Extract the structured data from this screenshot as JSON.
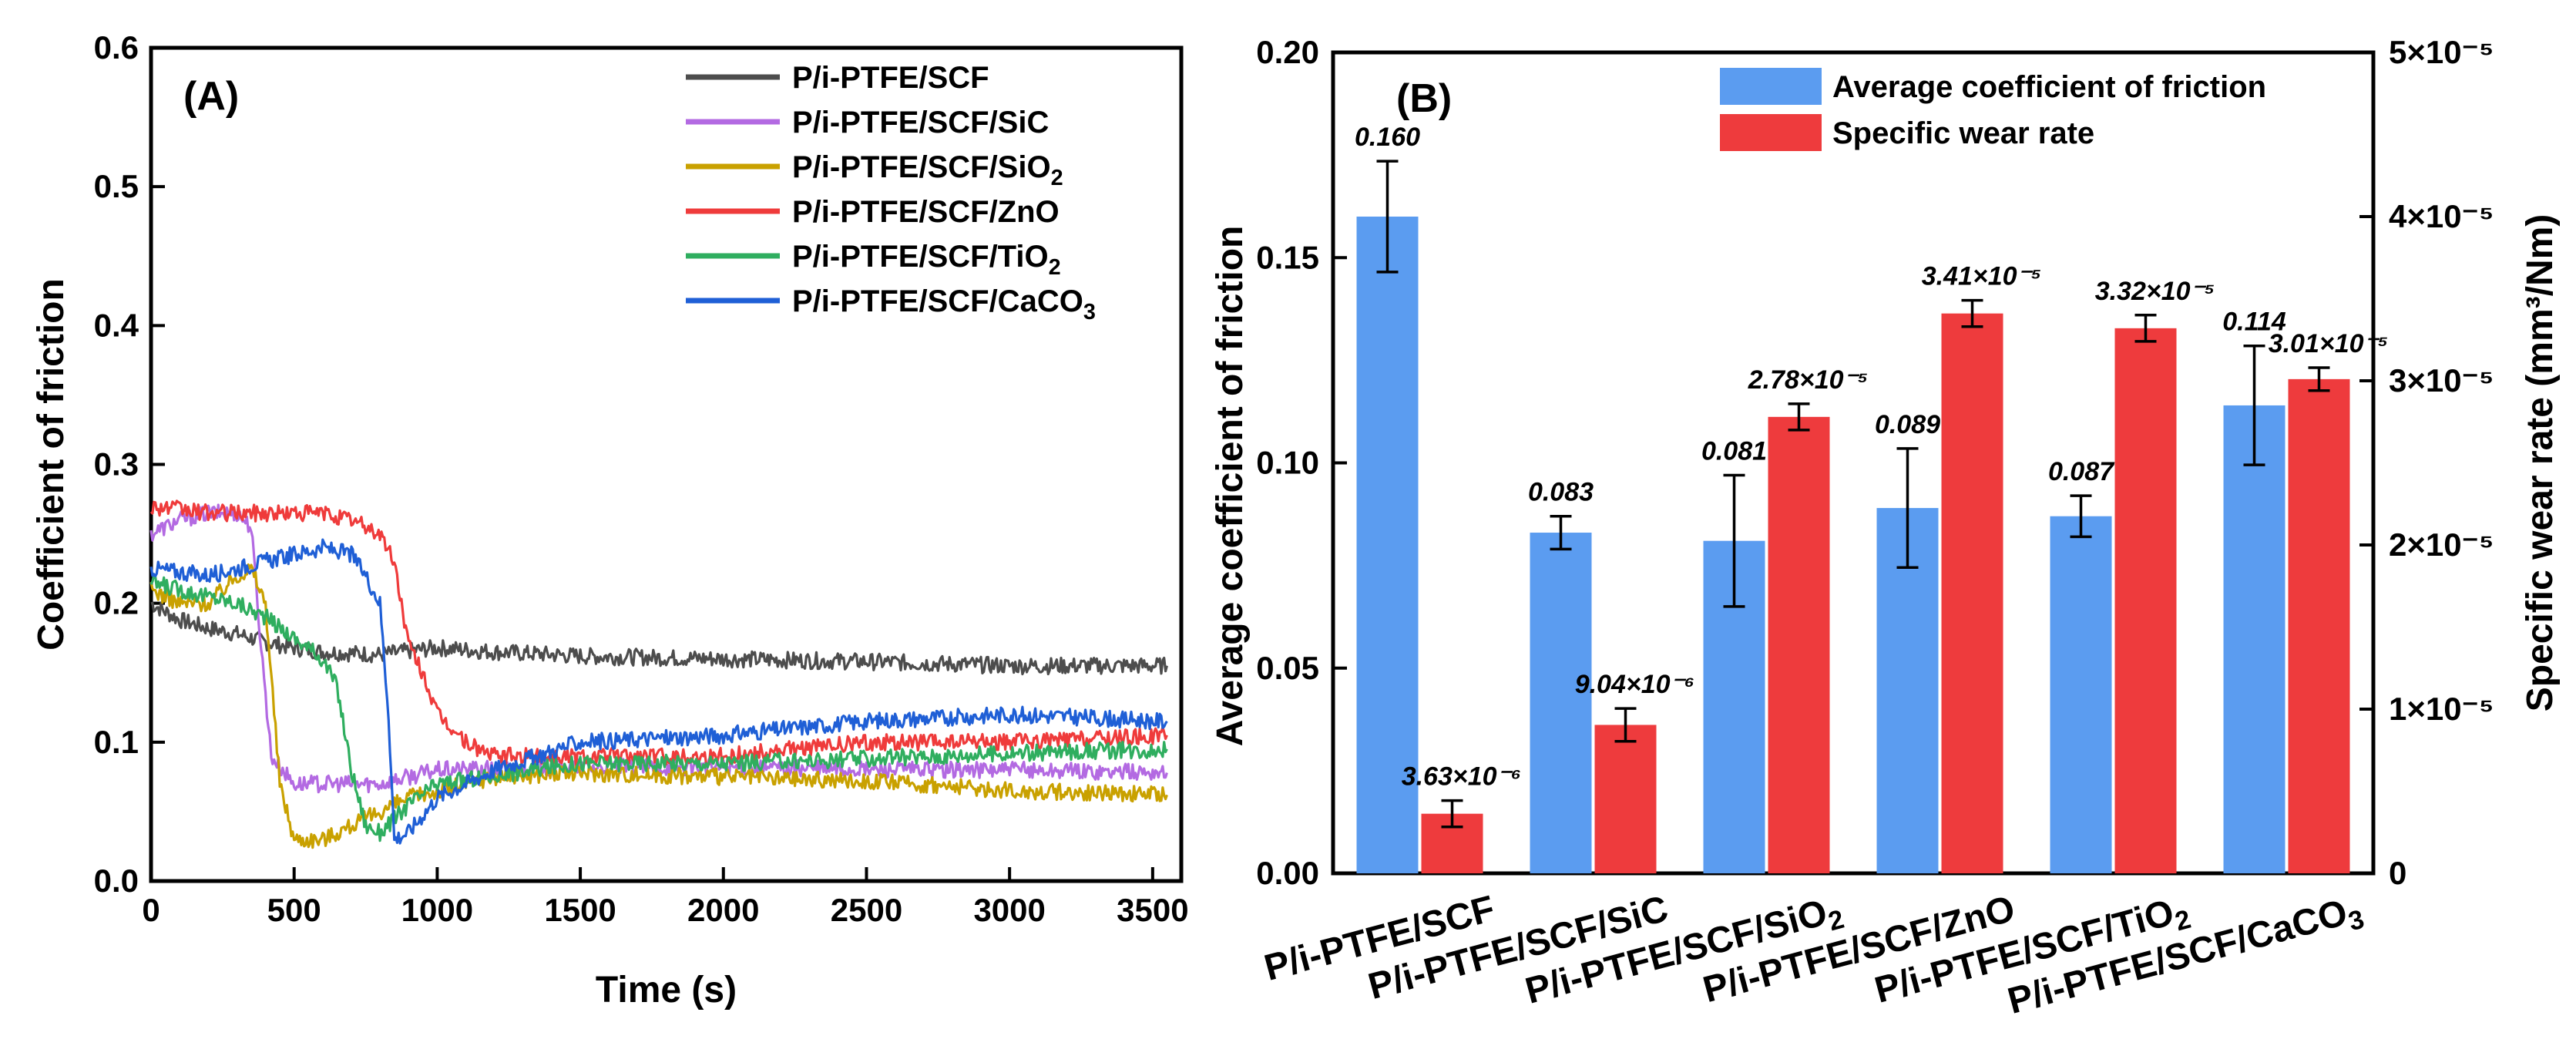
{
  "chart_data": [
    {
      "type": "line",
      "panel_label": "(A)",
      "title": "",
      "xlabel": "Time (s)",
      "ylabel": "Coefficient of friction",
      "xlim": [
        0,
        3600
      ],
      "ylim": [
        0,
        0.6
      ],
      "xticks": [
        "0",
        "500",
        "1000",
        "1500",
        "2000",
        "2500",
        "3000",
        "3500"
      ],
      "yticks": [
        "0.0",
        "0.1",
        "0.2",
        "0.3",
        "0.4",
        "0.5",
        "0.6"
      ],
      "legend_position": "top-right",
      "series": [
        {
          "name": "P/i-PTFE/SCF",
          "color": "#4d4d4d",
          "x": [
            0,
            100,
            200,
            300,
            400,
            500,
            600,
            800,
            1000,
            1200,
            1500,
            2000,
            2500,
            3000,
            3550
          ],
          "y": [
            0.2,
            0.188,
            0.182,
            0.178,
            0.172,
            0.168,
            0.165,
            0.163,
            0.168,
            0.165,
            0.162,
            0.16,
            0.158,
            0.155,
            0.155
          ]
        },
        {
          "name": "P/i-PTFE/SCF/SiC",
          "color": "#b36ae2",
          "x": [
            0,
            100,
            200,
            300,
            350,
            380,
            420,
            500,
            600,
            800,
            1000,
            1500,
            2000,
            2500,
            3000,
            3550
          ],
          "y": [
            0.25,
            0.26,
            0.265,
            0.265,
            0.255,
            0.18,
            0.09,
            0.07,
            0.07,
            0.07,
            0.08,
            0.082,
            0.082,
            0.08,
            0.08,
            0.078
          ]
        },
        {
          "name": "P/i-PTFE/SCF/SiO_2",
          "color": "#c9a100",
          "x": [
            0,
            100,
            200,
            300,
            350,
            400,
            450,
            500,
            600,
            700,
            800,
            900,
            1000,
            1200,
            1500,
            2000,
            2500,
            3000,
            3550
          ],
          "y": [
            0.21,
            0.2,
            0.2,
            0.22,
            0.225,
            0.2,
            0.07,
            0.03,
            0.03,
            0.04,
            0.05,
            0.06,
            0.065,
            0.075,
            0.078,
            0.075,
            0.072,
            0.065,
            0.062
          ]
        },
        {
          "name": "P/i-PTFE/SCF/ZnO",
          "color": "#ef3b3b",
          "x": [
            0,
            200,
            400,
            600,
            700,
            800,
            850,
            900,
            950,
            1000,
            1100,
            1200,
            1500,
            2000,
            2500,
            3000,
            3550
          ],
          "y": [
            0.27,
            0.265,
            0.265,
            0.265,
            0.26,
            0.25,
            0.23,
            0.17,
            0.15,
            0.12,
            0.1,
            0.09,
            0.09,
            0.09,
            0.1,
            0.1,
            0.105
          ]
        },
        {
          "name": "P/i-PTFE/SCF/TiO_2",
          "color": "#2fae5f",
          "x": [
            0,
            100,
            200,
            300,
            400,
            500,
            600,
            650,
            700,
            750,
            800,
            900,
            1000,
            1500,
            2000,
            2500,
            3000,
            3550
          ],
          "y": [
            0.215,
            0.21,
            0.205,
            0.2,
            0.19,
            0.175,
            0.16,
            0.14,
            0.08,
            0.04,
            0.035,
            0.055,
            0.07,
            0.085,
            0.085,
            0.088,
            0.092,
            0.095
          ]
        },
        {
          "name": "P/i-PTFE/SCF/CaCO_3",
          "color": "#1f5fd6",
          "x": [
            0,
            200,
            400,
            500,
            600,
            700,
            750,
            800,
            830,
            850,
            900,
            1000,
            1200,
            1500,
            2000,
            2500,
            3000,
            3550
          ],
          "y": [
            0.225,
            0.22,
            0.23,
            0.235,
            0.24,
            0.235,
            0.22,
            0.2,
            0.12,
            0.03,
            0.035,
            0.06,
            0.08,
            0.1,
            0.105,
            0.115,
            0.12,
            0.115
          ]
        }
      ]
    },
    {
      "type": "bar",
      "panel_label": "(B)",
      "title": "",
      "xlabel": "",
      "ylabel": "Average coefficient of friction",
      "ylabel_right": "Specific wear rate (mm³/Nm)",
      "ylim": [
        0,
        0.2
      ],
      "ylim_right": [
        0,
        5e-05
      ],
      "yticks": [
        "0.00",
        "0.05",
        "0.10",
        "0.15",
        "0.20"
      ],
      "yticks_right": [
        "0",
        "1×10⁻⁵",
        "2×10⁻⁵",
        "3×10⁻⁵",
        "4×10⁻⁵",
        "5×10⁻⁵"
      ],
      "legend_position": "top-right",
      "categories": [
        "P/i-PTFE/SCF",
        "P/i-PTFE/SCF/SiC",
        "P/i-PTFE/SCF/SiO_2",
        "P/i-PTFE/SCF/ZnO",
        "P/i-PTFE/SCF/TiO_2",
        "P/i-PTFE/SCF/CaCO_3"
      ],
      "series": [
        {
          "name": "Average coefficient of friction",
          "color": "#5b9cf0",
          "axis": "left",
          "values": [
            0.16,
            0.083,
            0.081,
            0.089,
            0.087,
            0.114
          ],
          "errors": [
            0.0135,
            0.004,
            0.016,
            0.0145,
            0.005,
            0.0145
          ],
          "labels": [
            "0.160",
            "0.083",
            "0.081",
            "0.089",
            "0.087",
            "0.114"
          ]
        },
        {
          "name": "Specific wear rate",
          "color": "#ee3b3d",
          "axis": "right",
          "values": [
            3.63e-06,
            9.04e-06,
            2.78e-05,
            3.41e-05,
            3.32e-05,
            3.01e-05
          ],
          "errors": [
            8e-07,
            1e-06,
            8e-07,
            8e-07,
            8e-07,
            7e-07
          ],
          "labels": [
            "3.63×10⁻⁶",
            "9.04×10⁻⁶",
            "2.78×10⁻⁵",
            "3.41×10⁻⁵",
            "3.32×10⁻⁵",
            "3.01×10⁻⁵"
          ]
        }
      ]
    }
  ]
}
